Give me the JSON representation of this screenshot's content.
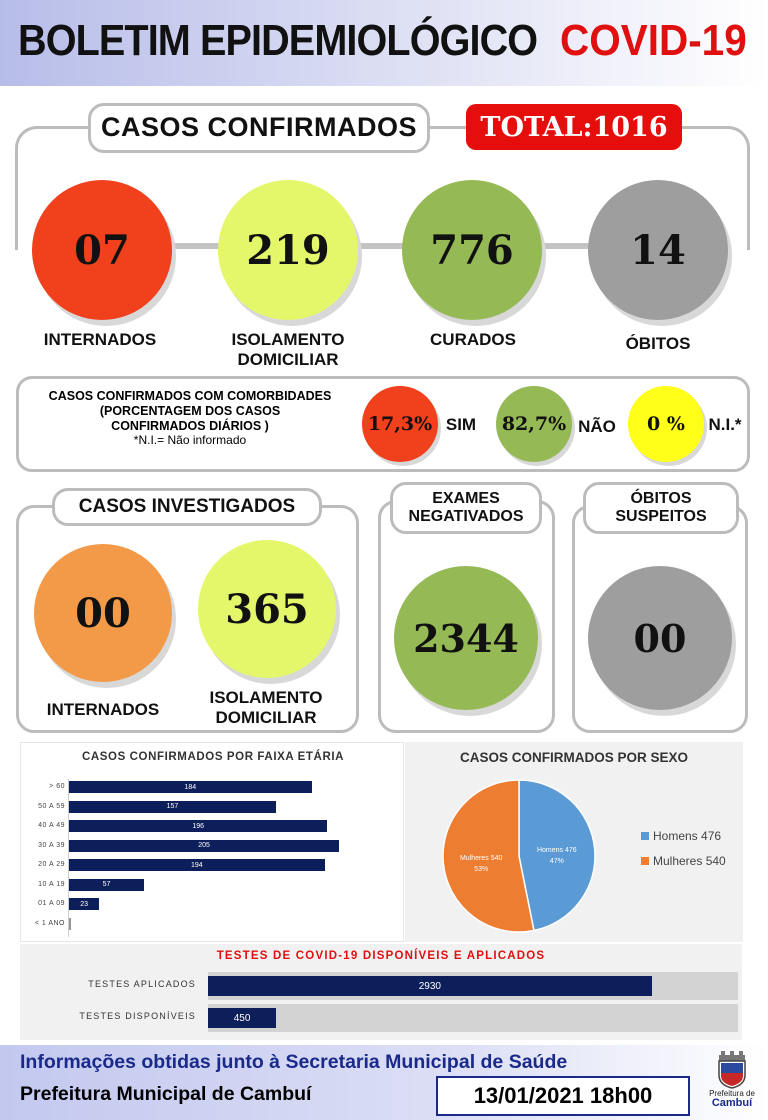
{
  "header": {
    "title": "BOLETIM EPIDEMIOLÓGICO",
    "subject": "COVID-19"
  },
  "confirmed": {
    "title": "CASOS CONFIRMADOS",
    "total_label": "TOTAL:1016",
    "items": [
      {
        "value": "07",
        "label": "INTERNADOS",
        "color": "#f0401c"
      },
      {
        "value": "219",
        "label": "ISOLAMENTO DOMICILIAR",
        "color": "#e4f76a"
      },
      {
        "value": "776",
        "label": "CURADOS",
        "color": "#95b954"
      },
      {
        "value": "14",
        "label": "ÓBITOS",
        "color": "#9e9e9e"
      }
    ]
  },
  "comorbidities": {
    "line1": "CASOS CONFIRMADOS COM COMORBIDADES",
    "line2": "(PORCENTAGEM DOS CASOS",
    "line3": "CONFIRMADOS DIÁRIOS )",
    "note": "*N.I.= Não informado",
    "items": [
      {
        "value": "17,3%",
        "label": "SIM",
        "color": "#f0401c"
      },
      {
        "value": "82,7%",
        "label": "NÃO",
        "color": "#95b954"
      },
      {
        "value": "0 %",
        "label": "N.I.*",
        "color": "#ffff1a"
      }
    ]
  },
  "investigated": {
    "title": "CASOS INVESTIGADOS",
    "items": [
      {
        "value": "00",
        "label_1": "INTERNADOS",
        "color": "#f39a48"
      },
      {
        "value": "365",
        "label_1": "ISOLAMENTO",
        "label_2": "DOMICILIAR",
        "color": "#e4f76a"
      }
    ]
  },
  "negative": {
    "title_1": "EXAMES",
    "title_2": "NEGATIVADOS",
    "value": "2344",
    "color": "#95b954"
  },
  "suspect_deaths": {
    "title_1": "ÓBITOS",
    "title_2": "SUSPEITOS",
    "value": "00",
    "color": "#9e9e9e"
  },
  "chart_data": [
    {
      "type": "bar",
      "title": "CASOS CONFIRMADOS POR FAIXA ETÁRIA",
      "orientation": "horizontal",
      "categories": [
        "> 60",
        "50 A 59",
        "40 A 49",
        "30 A 39",
        "20 A 29",
        "10 A 19",
        "01 A 09",
        "< 1 ANO"
      ],
      "values": [
        184,
        157,
        196,
        205,
        194,
        57,
        23,
        0
      ],
      "color": "#0d1f5a"
    },
    {
      "type": "pie",
      "title": "CASOS CONFIRMADOS POR SEXO",
      "series": [
        {
          "name": "Homens 476",
          "value": 476,
          "percent": "47%",
          "color": "#5b9bd5"
        },
        {
          "name": "Mulheres 540",
          "value": 540,
          "percent": "53%",
          "color": "#ed7d31"
        }
      ],
      "slice_labels": [
        {
          "line1": "Homens 476",
          "line2": "47%"
        },
        {
          "line1": "Mulheres 540",
          "line2": "53%"
        }
      ],
      "legend": "right"
    },
    {
      "type": "bar",
      "title": "TESTES DE COVID-19 DISPONÍVEIS E APLICADOS",
      "orientation": "horizontal",
      "categories": [
        "TESTES APLICADOS",
        "TESTES DISPONÍVEIS"
      ],
      "values": [
        2930,
        450
      ],
      "color": "#0d1f5a",
      "title_color": "#e01010"
    }
  ],
  "footer": {
    "source": "Informações obtidas junto à Secretaria Municipal de Saúde",
    "org": "Prefeitura Municipal de Cambuí",
    "datetime": "13/01/2021 18h00",
    "logo_line1": "Prefeitura de",
    "logo_line2": "Cambuí"
  }
}
